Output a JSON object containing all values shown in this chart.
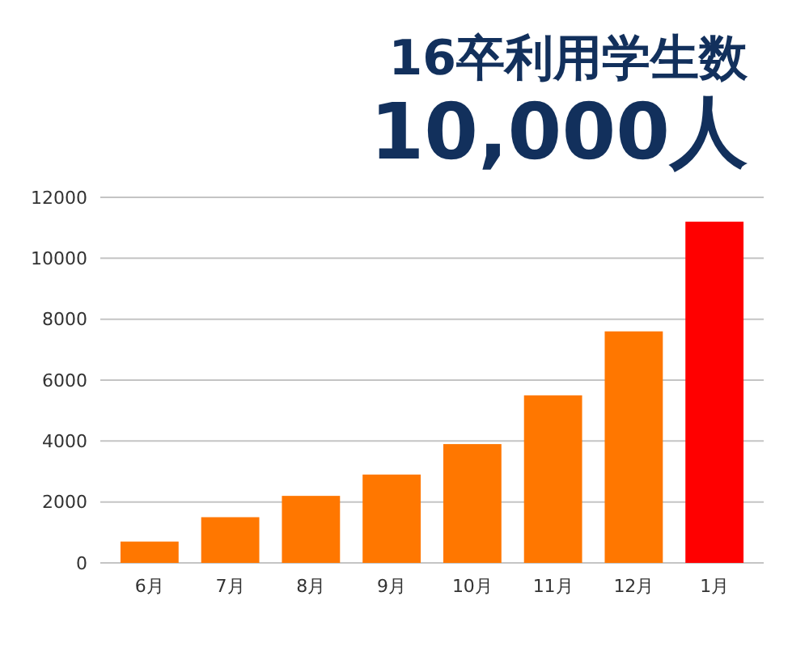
{
  "chart_data": {
    "type": "bar",
    "title": "16卒利用学生数",
    "subtitle": "10,000人",
    "categories": [
      "6月",
      "7月",
      "8月",
      "9月",
      "10月",
      "11月",
      "12月",
      "1月"
    ],
    "values": [
      700,
      1500,
      2200,
      2900,
      3900,
      5500,
      7600,
      11200
    ],
    "colors": [
      "#ff7700",
      "#ff7700",
      "#ff7700",
      "#ff7700",
      "#ff7700",
      "#ff7700",
      "#ff7700",
      "#ff0000"
    ],
    "ylim": [
      0,
      12000
    ],
    "yticks": [
      0,
      2000,
      4000,
      6000,
      8000,
      10000,
      12000
    ],
    "grid": "y"
  }
}
